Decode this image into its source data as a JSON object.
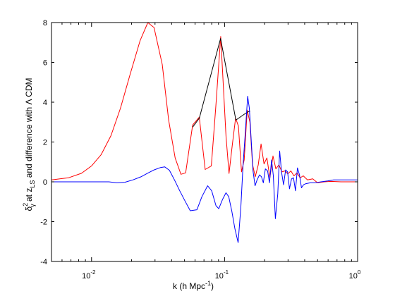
{
  "chart_data": {
    "type": "line",
    "xscale": "log",
    "xlim": [
      0.005,
      1.0
    ],
    "ylim": [
      -4,
      8
    ],
    "grid": false,
    "legend": "none",
    "xlabel": "k (h Mpc",
    "xlabel_sup": "-1",
    "xlabel_tail": ")",
    "ylabel": {
      "delta": "δ",
      "sup": "2",
      "sub": "γ",
      "mid": " at z",
      "sub2": "LS",
      "tail": "  and difference with Λ CDM"
    },
    "yticks": [
      -4,
      -2,
      0,
      2,
      4,
      6,
      8
    ],
    "xticks": [
      {
        "value": 0.01,
        "base": "10",
        "exp": "-2"
      },
      {
        "value": 0.1,
        "base": "10",
        "exp": "-1"
      },
      {
        "value": 1,
        "base": "10",
        "exp": "0"
      }
    ],
    "series": [
      {
        "color": "#ff0000",
        "points": [
          [
            0.005,
            0.1
          ],
          [
            0.0067,
            0.2
          ],
          [
            0.0084,
            0.43
          ],
          [
            0.01,
            0.8
          ],
          [
            0.0118,
            1.36
          ],
          [
            0.014,
            2.32
          ],
          [
            0.0165,
            3.7
          ],
          [
            0.0195,
            5.4
          ],
          [
            0.0232,
            7.1
          ],
          [
            0.0265,
            8.0
          ],
          [
            0.0295,
            7.75
          ],
          [
            0.034,
            5.9
          ],
          [
            0.038,
            3.1
          ],
          [
            0.0425,
            1.2
          ],
          [
            0.047,
            0.38
          ],
          [
            0.051,
            0.45
          ],
          [
            0.0575,
            2.85
          ],
          [
            0.0645,
            3.25
          ],
          [
            0.0715,
            0.62
          ],
          [
            0.0795,
            0.8
          ],
          [
            0.086,
            3.8
          ],
          [
            0.0935,
            7.3
          ],
          [
            0.1025,
            2.3
          ],
          [
            0.108,
            0.42
          ],
          [
            0.1145,
            1.9
          ],
          [
            0.121,
            3.2
          ],
          [
            0.127,
            2.8
          ],
          [
            0.134,
            0.5
          ],
          [
            0.1405,
            1.1
          ],
          [
            0.148,
            3.6
          ],
          [
            0.155,
            3.0
          ],
          [
            0.162,
            0.9
          ],
          [
            0.17,
            0.25
          ],
          [
            0.179,
            0.85
          ],
          [
            0.188,
            1.9
          ],
          [
            0.198,
            0.9
          ],
          [
            0.208,
            1.2
          ],
          [
            0.219,
            0.2
          ],
          [
            0.231,
            1.3
          ],
          [
            0.243,
            0.65
          ],
          [
            0.256,
            0.85
          ],
          [
            0.27,
            0.5
          ],
          [
            0.284,
            0.55
          ],
          [
            0.299,
            0.4
          ],
          [
            0.315,
            0.55
          ],
          [
            0.332,
            0.3
          ],
          [
            0.35,
            0.45
          ],
          [
            0.37,
            0.2
          ],
          [
            0.39,
            0.3
          ],
          [
            0.42,
            0.1
          ],
          [
            0.46,
            0.15
          ],
          [
            0.5,
            -0.05
          ],
          [
            0.56,
            0.0
          ],
          [
            0.63,
            0.02
          ],
          [
            0.75,
            0.0
          ],
          [
            1.0,
            0.0
          ]
        ]
      },
      {
        "color": "#000000",
        "points": [
          [
            0.05758,
            2.75
          ],
          [
            0.06459,
            3.2
          ],
          [
            0.09331,
            7.2
          ],
          [
            0.1216,
            3.1
          ],
          [
            0.1482,
            3.5
          ],
          [
            0.1556,
            3.55
          ]
        ]
      },
      {
        "color": "#0000ff",
        "points": [
          [
            0.005,
            0.0
          ],
          [
            0.0078,
            0.0
          ],
          [
            0.0102,
            0.0
          ],
          [
            0.0135,
            0.0
          ],
          [
            0.0155,
            -0.05
          ],
          [
            0.0178,
            -0.02
          ],
          [
            0.0205,
            0.1
          ],
          [
            0.0235,
            0.25
          ],
          [
            0.0262,
            0.42
          ],
          [
            0.0295,
            0.6
          ],
          [
            0.033,
            0.72
          ],
          [
            0.0355,
            0.75
          ],
          [
            0.0385,
            0.58
          ],
          [
            0.042,
            0.1
          ],
          [
            0.046,
            -0.45
          ],
          [
            0.0503,
            -0.95
          ],
          [
            0.0552,
            -1.45
          ],
          [
            0.062,
            -1.4
          ],
          [
            0.0675,
            -0.75
          ],
          [
            0.0745,
            -0.2
          ],
          [
            0.08,
            -0.45
          ],
          [
            0.0862,
            -1.2
          ],
          [
            0.0905,
            -1.35
          ],
          [
            0.0963,
            -0.9
          ],
          [
            0.1025,
            -0.55
          ],
          [
            0.1075,
            -0.75
          ],
          [
            0.1135,
            -1.5
          ],
          [
            0.1195,
            -2.35
          ],
          [
            0.1265,
            -3.05
          ],
          [
            0.1324,
            -1.3
          ],
          [
            0.1375,
            0.8
          ],
          [
            0.1435,
            2.6
          ],
          [
            0.149,
            4.3
          ],
          [
            0.1535,
            3.7
          ],
          [
            0.158,
            2.25
          ],
          [
            0.1635,
            0.55
          ],
          [
            0.1695,
            -0.2
          ],
          [
            0.1755,
            0.1
          ],
          [
            0.183,
            0.35
          ],
          [
            0.1895,
            0.25
          ],
          [
            0.1955,
            -0.05
          ],
          [
            0.2025,
            0.65
          ],
          [
            0.2105,
            0.55
          ],
          [
            0.2175,
            -0.05
          ],
          [
            0.2255,
            1.1
          ],
          [
            0.2325,
            0.3
          ],
          [
            0.241,
            -1.85
          ],
          [
            0.251,
            -0.6
          ],
          [
            0.2595,
            1.55
          ],
          [
            0.268,
            0.5
          ],
          [
            0.2775,
            -0.15
          ],
          [
            0.2875,
            0.6
          ],
          [
            0.2975,
            0.5
          ],
          [
            0.3075,
            -0.35
          ],
          [
            0.3185,
            0.15
          ],
          [
            0.3295,
            0.2
          ],
          [
            0.341,
            -0.45
          ],
          [
            0.353,
            0.7
          ],
          [
            0.3655,
            0.35
          ],
          [
            0.3785,
            -0.3
          ],
          [
            0.392,
            -0.15
          ],
          [
            0.406,
            -0.1
          ],
          [
            0.44,
            -0.05
          ],
          [
            0.48,
            -0.05
          ],
          [
            0.53,
            0.0
          ],
          [
            0.6,
            0.05
          ],
          [
            0.66,
            0.1
          ],
          [
            0.75,
            0.1
          ],
          [
            0.85,
            0.1
          ],
          [
            1.0,
            0.1
          ]
        ]
      }
    ]
  }
}
